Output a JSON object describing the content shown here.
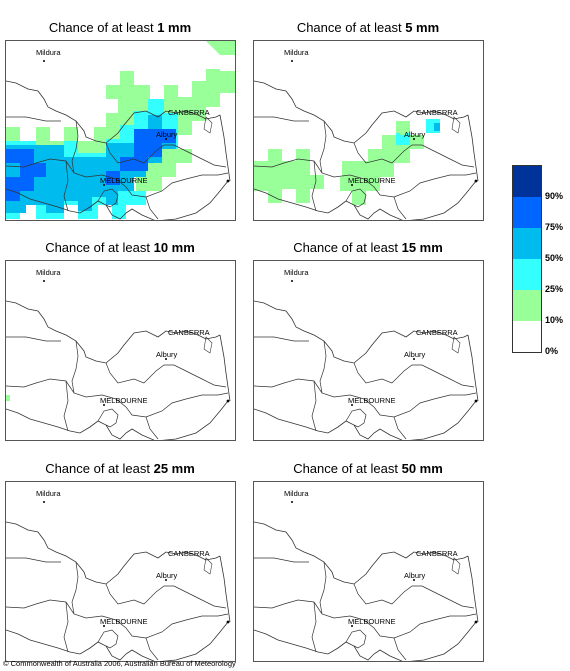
{
  "panels": [
    {
      "title_prefix": "Chance of at least ",
      "amount": "1 mm"
    },
    {
      "title_prefix": "Chance of at least ",
      "amount": "5 mm"
    },
    {
      "title_prefix": "Chance of at least ",
      "amount": "10 mm"
    },
    {
      "title_prefix": "Chance of at least ",
      "amount": "15 mm"
    },
    {
      "title_prefix": "Chance of at least ",
      "amount": "25 mm"
    },
    {
      "title_prefix": "Chance of at least ",
      "amount": "50 mm"
    }
  ],
  "cities": {
    "mildura": "Mildura",
    "canberra": "CANBERRA",
    "albury": "Albury",
    "melbourne": "MELBOURNE"
  },
  "legend": {
    "labels": [
      "90%",
      "75%",
      "50%",
      "25%",
      "10%",
      "0%"
    ],
    "colors": [
      "#003399",
      "#0066ff",
      "#00bbee",
      "#33ffff",
      "#99ff99",
      "#ffffff"
    ]
  },
  "copyright": "© Commonwealth of Australia 2006, Australian Bureau of Meteorology"
}
